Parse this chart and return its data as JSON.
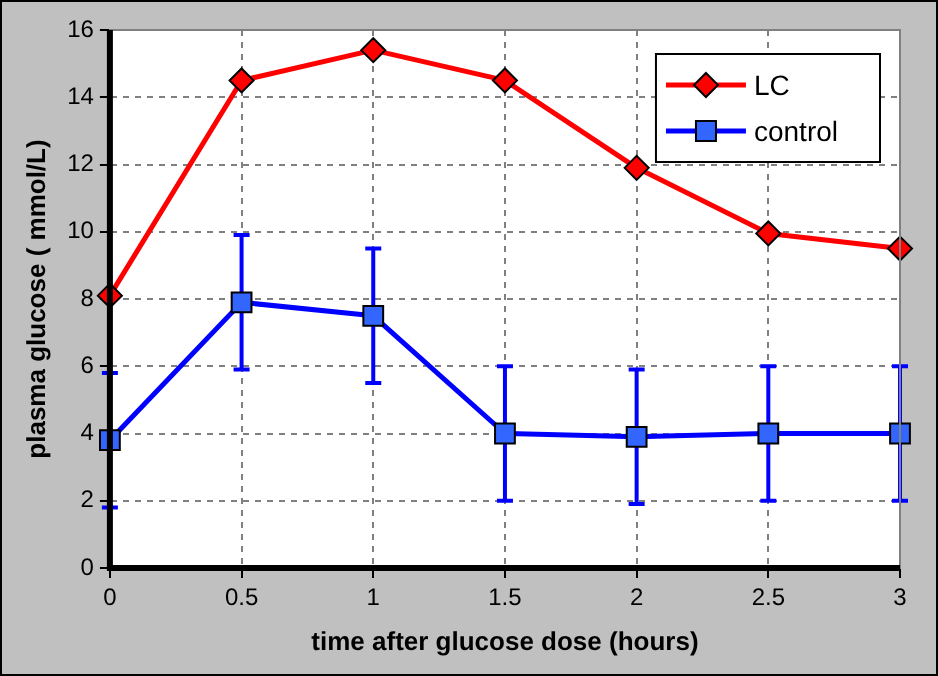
{
  "chart_data": {
    "type": "line",
    "xlabel": "time after glucose dose (hours)",
    "ylabel": "plasma glucose ( mmol/L)",
    "x": [
      0,
      0.5,
      1,
      1.5,
      2,
      2.5,
      3
    ],
    "series": [
      {
        "name": "LC",
        "color": "#ff0000",
        "marker": "diamond",
        "values": [
          8.1,
          14.5,
          15.4,
          14.5,
          11.9,
          9.95,
          9.5
        ]
      },
      {
        "name": "control",
        "color": "#0000ff",
        "marker": "square",
        "values": [
          3.8,
          7.9,
          7.5,
          4.0,
          3.9,
          4.0,
          4.0
        ],
        "errors": [
          2,
          2,
          2,
          2,
          2,
          2,
          2
        ]
      }
    ],
    "xlim": [
      0,
      3
    ],
    "xticks": [
      0,
      0.5,
      1,
      1.5,
      2,
      2.5,
      3
    ],
    "ylim": [
      0,
      16
    ],
    "yticks": [
      0,
      2,
      4,
      6,
      8,
      10,
      12,
      14,
      16
    ],
    "grid": true,
    "legend": "top right"
  }
}
